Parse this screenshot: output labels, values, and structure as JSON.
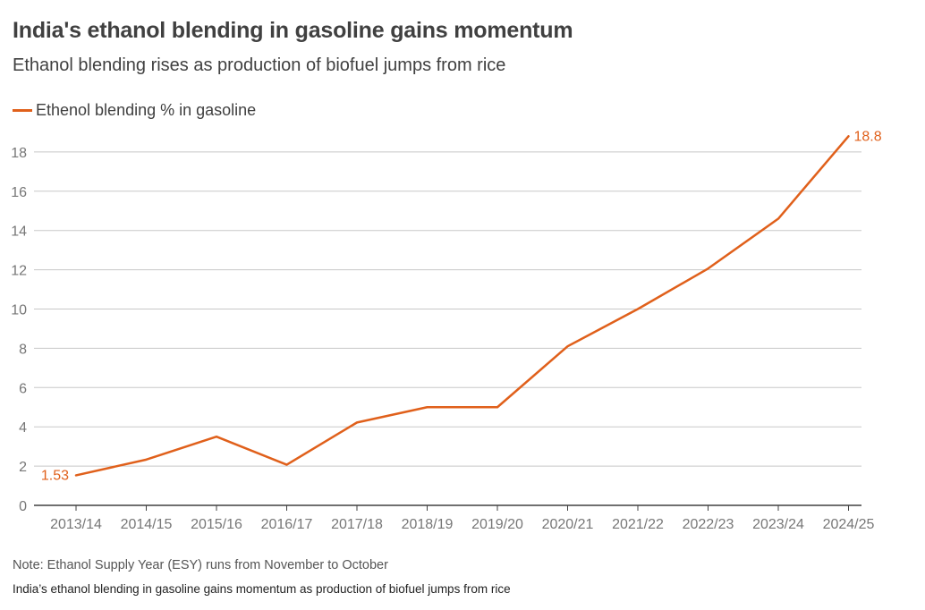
{
  "header": {
    "title": "India's ethanol blending in gasoline gains momentum",
    "subtitle": "Ethanol blending rises as production of biofuel jumps from rice"
  },
  "footer": {
    "note": "Note: Ethanol Supply Year (ESY) runs from November to October",
    "caption": "India’s ethanol blending in gasoline gains momentum as production of biofuel jumps from rice"
  },
  "colors": {
    "series": "#e0601b",
    "grid": "#c8c8c8",
    "axis": "#404040",
    "tick_text": "#777777"
  },
  "chart_data": {
    "type": "line",
    "title": "India's ethanol blending in gasoline gains momentum",
    "subtitle": "Ethanol blending rises as production of biofuel jumps from rice",
    "xlabel": "",
    "ylabel": "",
    "categories": [
      "2013/14",
      "2014/15",
      "2015/16",
      "2016/17",
      "2017/18",
      "2018/19",
      "2019/20",
      "2020/21",
      "2021/22",
      "2022/23",
      "2023/24",
      "2024/25"
    ],
    "series": [
      {
        "name": "Ethenol blending % in gasoline",
        "values": [
          1.53,
          2.33,
          3.5,
          2.07,
          4.22,
          5.0,
          5.0,
          8.1,
          10.0,
          12.06,
          14.6,
          18.8
        ]
      }
    ],
    "data_labels": [
      {
        "index": 0,
        "text": "1.53"
      },
      {
        "index": 11,
        "text": "18.8"
      }
    ],
    "ylim": [
      0,
      19
    ],
    "yticks": [
      0,
      2,
      4,
      6,
      8,
      10,
      12,
      14,
      16,
      18
    ],
    "grid": true,
    "legend_position": "top-left"
  }
}
